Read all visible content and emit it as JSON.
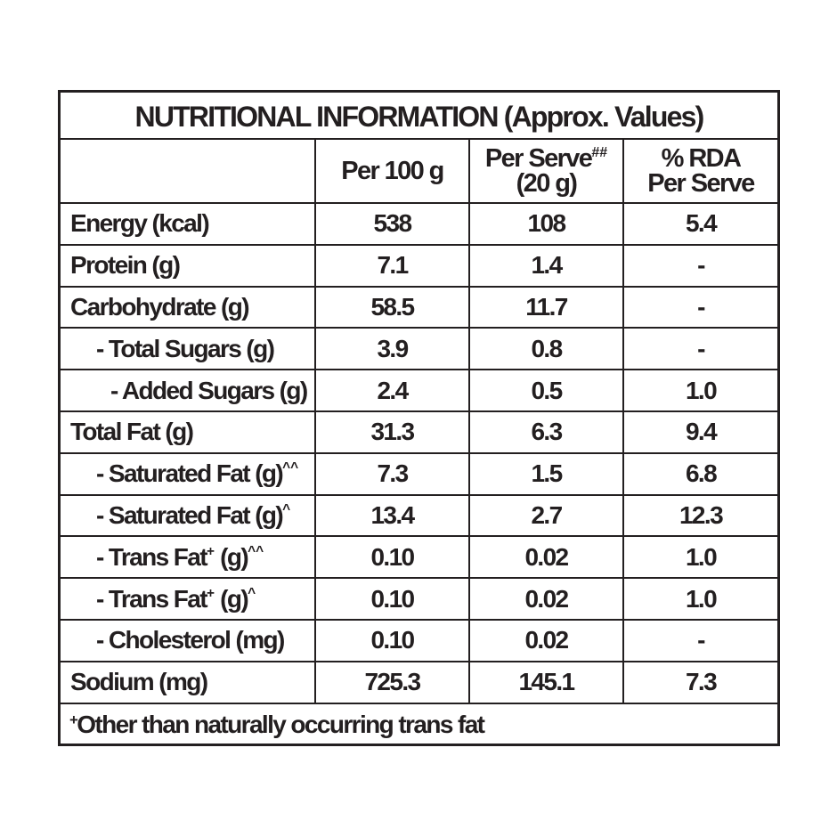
{
  "table": {
    "title": "NUTRITIONAL INFORMATION (Approx. Values)",
    "headers": {
      "per100": "Per 100 g",
      "perServeLabel": "Per Serve",
      "perServeMark": "##",
      "perServeSize": "(20 g)",
      "rdaLine1": "% RDA",
      "rdaLine2": "Per Serve"
    },
    "rows": [
      {
        "name": "Energy (kcal)",
        "level": 0,
        "per100": "538",
        "perServe": "108",
        "rda": "5.4"
      },
      {
        "name": "Protein (g)",
        "level": 0,
        "per100": "7.1",
        "perServe": "1.4",
        "rda": "-"
      },
      {
        "name": "Carbohydrate (g)",
        "level": 0,
        "per100": "58.5",
        "perServe": "11.7",
        "rda": "-"
      },
      {
        "name": "- Total Sugars (g)",
        "level": 1,
        "per100": "3.9",
        "perServe": "0.8",
        "rda": "-"
      },
      {
        "name": "- Added Sugars (g)",
        "level": 2,
        "per100": "2.4",
        "perServe": "0.5",
        "rda": "1.0"
      },
      {
        "name": "Total Fat (g)",
        "level": 0,
        "per100": "31.3",
        "perServe": "6.3",
        "rda": "9.4"
      },
      {
        "name": "- Saturated Fat (g)",
        "suffix": "^^",
        "level": 1,
        "per100": "7.3",
        "perServe": "1.5",
        "rda": "6.8"
      },
      {
        "name": "- Saturated Fat (g)",
        "suffix": "^",
        "level": 1,
        "per100": "13.4",
        "perServe": "2.7",
        "rda": "12.3"
      },
      {
        "name": "- Trans Fat",
        "mark": "+",
        "nameTail": " (g)",
        "suffix": "^^",
        "level": 1,
        "per100": "0.10",
        "perServe": "0.02",
        "rda": "1.0"
      },
      {
        "name": "- Trans Fat",
        "mark": "+",
        "nameTail": " (g)",
        "suffix": "^",
        "level": 1,
        "per100": "0.10",
        "perServe": "0.02",
        "rda": "1.0"
      },
      {
        "name": "- Cholesterol (mg)",
        "level": 1,
        "per100": "0.10",
        "perServe": "0.02",
        "rda": "-"
      },
      {
        "name": "Sodium (mg)",
        "level": 0,
        "per100": "725.3",
        "perServe": "145.1",
        "rda": "7.3"
      }
    ],
    "footnote": {
      "mark": "+",
      "text": "Other than naturally occurring trans fat"
    }
  }
}
